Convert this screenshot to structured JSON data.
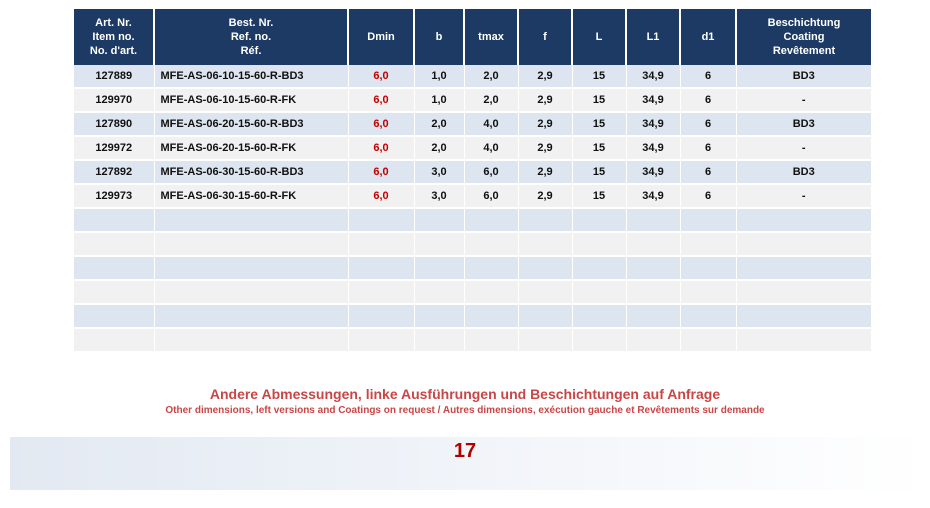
{
  "table": {
    "headers": [
      [
        "Art. Nr.",
        "Item no.",
        "No. d'art."
      ],
      [
        "Best. Nr.",
        "Ref. no.",
        "Réf."
      ],
      [
        "Dmin"
      ],
      [
        "b"
      ],
      [
        "tmax"
      ],
      [
        "f"
      ],
      [
        "L"
      ],
      [
        "L1"
      ],
      [
        "d1"
      ],
      [
        "Beschichtung",
        "Coating",
        "Revêtement"
      ]
    ],
    "rows": [
      [
        "127889",
        "MFE-AS-06-10-15-60-R-BD3",
        "6,0",
        "1,0",
        "2,0",
        "2,9",
        "15",
        "34,9",
        "6",
        "BD3"
      ],
      [
        "129970",
        "MFE-AS-06-10-15-60-R-FK",
        "6,0",
        "1,0",
        "2,0",
        "2,9",
        "15",
        "34,9",
        "6",
        "-"
      ],
      [
        "127890",
        "MFE-AS-06-20-15-60-R-BD3",
        "6,0",
        "2,0",
        "4,0",
        "2,9",
        "15",
        "34,9",
        "6",
        "BD3"
      ],
      [
        "129972",
        "MFE-AS-06-20-15-60-R-FK",
        "6,0",
        "2,0",
        "4,0",
        "2,9",
        "15",
        "34,9",
        "6",
        "-"
      ],
      [
        "127892",
        "MFE-AS-06-30-15-60-R-BD3",
        "6,0",
        "3,0",
        "6,0",
        "2,9",
        "15",
        "34,9",
        "6",
        "BD3"
      ],
      [
        "129973",
        "MFE-AS-06-30-15-60-R-FK",
        "6,0",
        "3,0",
        "6,0",
        "2,9",
        "15",
        "34,9",
        "6",
        "-"
      ],
      [
        "",
        "",
        "",
        "",
        "",
        "",
        "",
        "",
        "",
        ""
      ],
      [
        "",
        "",
        "",
        "",
        "",
        "",
        "",
        "",
        "",
        ""
      ],
      [
        "",
        "",
        "",
        "",
        "",
        "",
        "",
        "",
        "",
        ""
      ],
      [
        "",
        "",
        "",
        "",
        "",
        "",
        "",
        "",
        "",
        ""
      ],
      [
        "",
        "",
        "",
        "",
        "",
        "",
        "",
        "",
        "",
        ""
      ],
      [
        "",
        "",
        "",
        "",
        "",
        "",
        "",
        "",
        "",
        ""
      ]
    ]
  },
  "notes": {
    "de": "Andere Abmessungen, linke Ausführungen und Beschichtungen auf Anfrage",
    "en_fr": "Other dimensions, left versions and Coatings on request / Autres dimensions, exécution gauche et Revêtements sur demande"
  },
  "page_number": "17",
  "colors": {
    "header_bg": "#1c3a63",
    "dmin_text": "#c00000",
    "note_text": "#c94646",
    "page_number": "#b00000"
  }
}
